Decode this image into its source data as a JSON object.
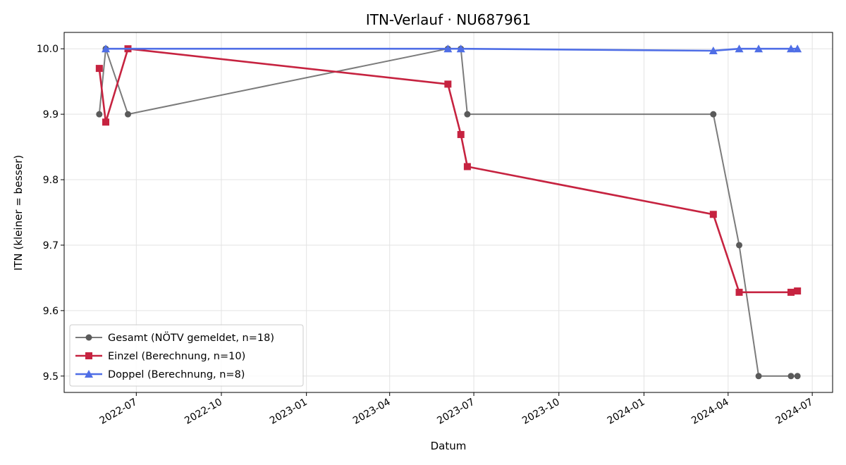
{
  "chart_data": {
    "type": "line",
    "title": "ITN-Verlauf · NU687961",
    "xlabel": "Datum",
    "ylabel": "ITN  (kleiner = besser)",
    "ylim": [
      9.475,
      10.025
    ],
    "xlim": [
      "2022-04-14",
      "2024-07-23"
    ],
    "x_ticks": [
      "2022-07",
      "2022-10",
      "2023-01",
      "2023-04",
      "2023-07",
      "2023-10",
      "2024-01",
      "2024-04",
      "2024-07"
    ],
    "y_ticks": [
      "9.5",
      "9.6",
      "9.7",
      "9.8",
      "9.9",
      "10.0"
    ],
    "grid": true,
    "legend_position": "lower-left",
    "series": [
      {
        "name": "Gesamt (NÖTV gemeldet, n=18)",
        "color": "#5a5a5a",
        "marker": "circle",
        "points": [
          [
            "2022-05-22",
            9.9
          ],
          [
            "2022-05-29",
            10.0
          ],
          [
            "2022-06-22",
            9.9
          ],
          [
            "2023-06-03",
            10.0
          ],
          [
            "2023-06-17",
            10.0
          ],
          [
            "2023-06-24",
            9.9
          ],
          [
            "2024-03-16",
            9.9
          ],
          [
            "2024-04-13",
            9.7
          ],
          [
            "2024-05-04",
            9.5
          ],
          [
            "2024-06-08",
            9.5
          ],
          [
            "2024-06-15",
            9.5
          ]
        ]
      },
      {
        "name": "Einzel (Berechnung, n=10)",
        "color": "#c62340",
        "marker": "square",
        "points": [
          [
            "2022-05-22",
            9.97
          ],
          [
            "2022-05-29",
            9.888
          ],
          [
            "2022-06-22",
            10.0
          ],
          [
            "2023-06-03",
            9.946
          ],
          [
            "2023-06-17",
            9.869
          ],
          [
            "2023-06-24",
            9.82
          ],
          [
            "2024-03-16",
            9.747
          ],
          [
            "2024-04-13",
            9.628
          ],
          [
            "2024-06-08",
            9.628
          ],
          [
            "2024-06-15",
            9.63
          ]
        ]
      },
      {
        "name": "Doppel (Berechnung, n=8)",
        "color": "#4f6ee6",
        "marker": "triangle",
        "points": [
          [
            "2022-05-29",
            10.0
          ],
          [
            "2023-06-03",
            10.0
          ],
          [
            "2023-06-17",
            10.0
          ],
          [
            "2024-03-16",
            9.997
          ],
          [
            "2024-04-13",
            10.0
          ],
          [
            "2024-05-04",
            10.0
          ],
          [
            "2024-06-08",
            10.0
          ],
          [
            "2024-06-15",
            10.0
          ]
        ]
      }
    ]
  }
}
